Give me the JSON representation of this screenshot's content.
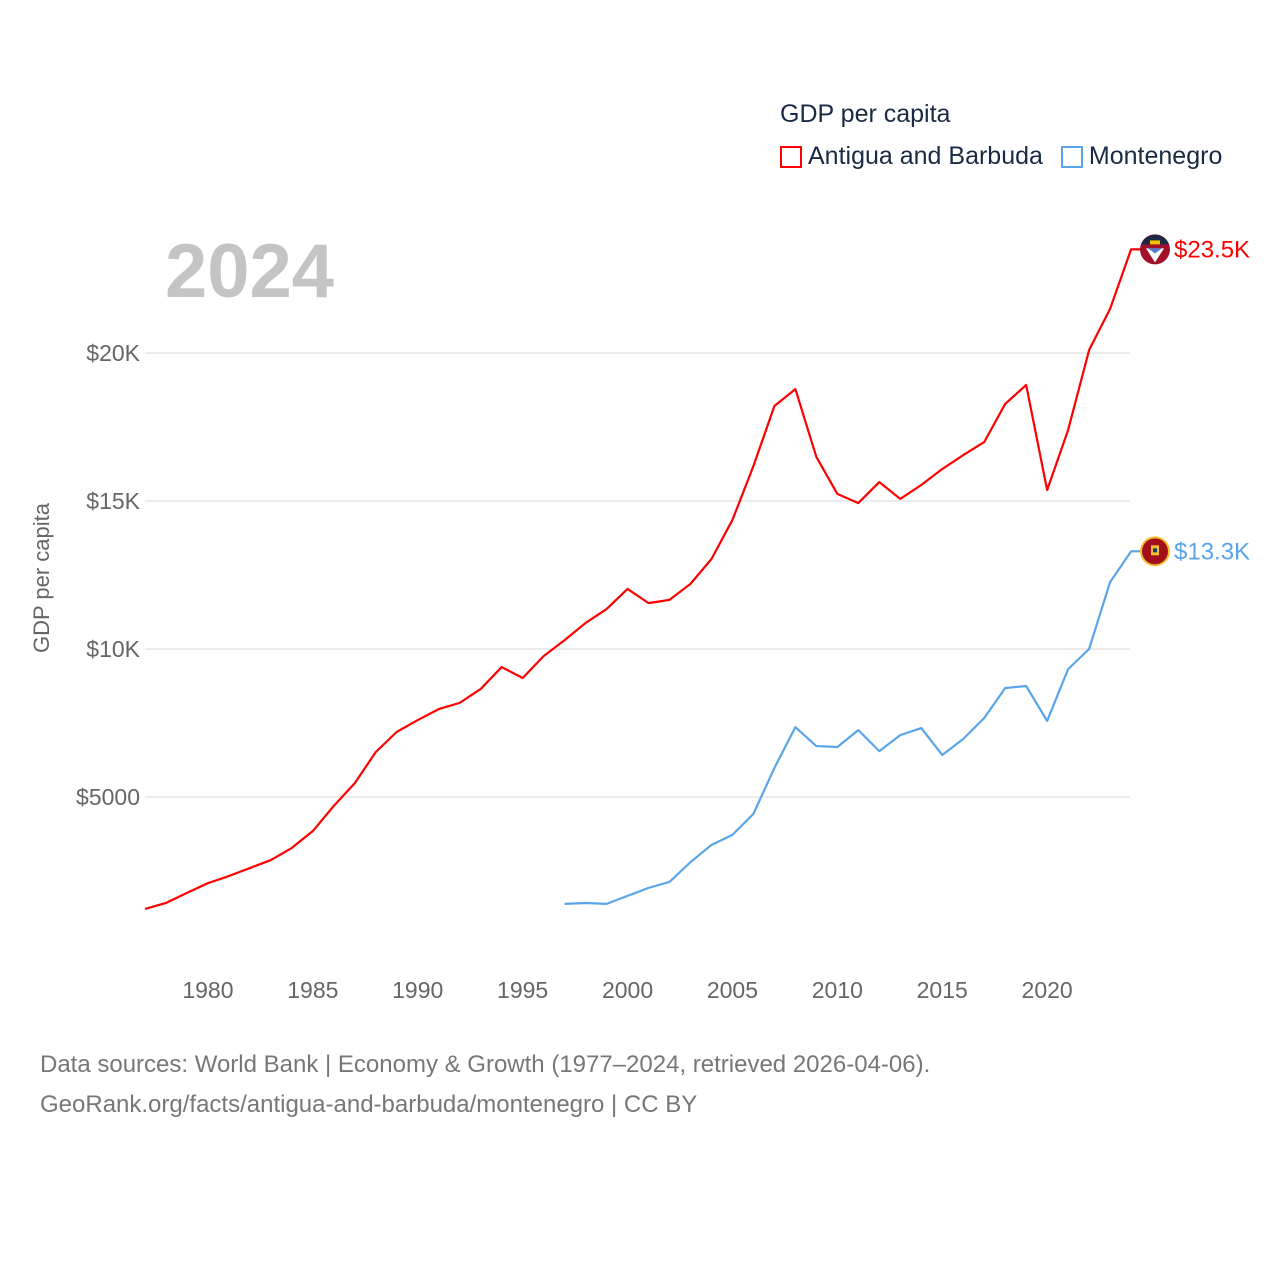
{
  "chart_data": {
    "type": "line",
    "title": "GDP per capita",
    "year_label": "2024",
    "ylabel": "GDP per capita",
    "xlim": [
      1977,
      2024
    ],
    "ylim": [
      0,
      25000
    ],
    "x_ticks": [
      1980,
      1985,
      1990,
      1995,
      2000,
      2005,
      2010,
      2015,
      2020
    ],
    "y_ticks": [
      {
        "value": 5000,
        "label": "$5000"
      },
      {
        "value": 10000,
        "label": "$10K"
      },
      {
        "value": 15000,
        "label": "$15K"
      },
      {
        "value": 20000,
        "label": "$20K"
      }
    ],
    "grid": true,
    "legend_placement": "top-right",
    "series": [
      {
        "name": "Antigua and Barbuda",
        "color": "#ff0000",
        "end_label": "$23.5K",
        "start_year": 1977,
        "values": [
          1220,
          1420,
          1760,
          2090,
          2330,
          2600,
          2870,
          3280,
          3850,
          4700,
          5470,
          6520,
          7200,
          7600,
          7970,
          8180,
          8650,
          9390,
          9020,
          9760,
          10300,
          10880,
          11350,
          12030,
          11550,
          11660,
          12200,
          13040,
          14360,
          16180,
          18210,
          18780,
          16490,
          15240,
          14930,
          15640,
          15070,
          15540,
          16080,
          16550,
          16990,
          18280,
          18920,
          15370,
          17400,
          20100,
          21490,
          23500
        ]
      },
      {
        "name": "Montenegro",
        "color": "#5aa5ea",
        "end_label": "$13.3K",
        "start_year": 1997,
        "values": [
          1390,
          1420,
          1390,
          1660,
          1930,
          2130,
          2800,
          3380,
          3720,
          4430,
          5980,
          7360,
          6720,
          6690,
          7260,
          6550,
          7090,
          7330,
          6420,
          6960,
          7670,
          8680,
          8750,
          7570,
          9320,
          10000,
          12260,
          13300
        ]
      }
    ]
  },
  "footer": {
    "line1": "Data sources: World Bank | Economy & Growth (1977–2024, retrieved 2026-04-06).",
    "line2": "GeoRank.org/facts/antigua-and-barbuda/montenegro | CC BY"
  }
}
